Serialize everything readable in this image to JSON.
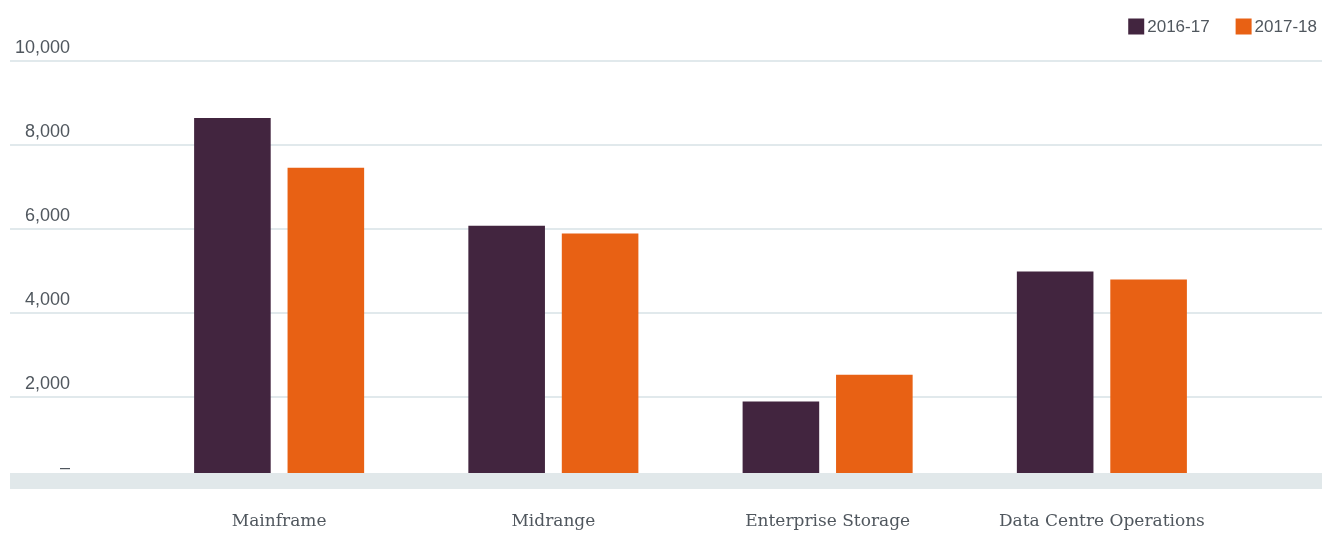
{
  "chart_data": {
    "type": "bar",
    "categories": [
      "Mainframe",
      "Midrange",
      "Enterprise Storage",
      "Data Centre Operations"
    ],
    "series": [
      {
        "name": "2016-17",
        "color": "#42253f",
        "values": [
          8640,
          6080,
          1890,
          4990
        ]
      },
      {
        "name": "2017-18",
        "color": "#e86114",
        "values": [
          7460,
          5890,
          2530,
          4800
        ]
      }
    ],
    "ylim": [
      0,
      10000
    ],
    "yticks": [
      {
        "value": 0,
        "label": "–"
      },
      {
        "value": 2000,
        "label": "2,000"
      },
      {
        "value": 4000,
        "label": "4,000"
      },
      {
        "value": 6000,
        "label": "6,000"
      },
      {
        "value": 8000,
        "label": "8,000"
      },
      {
        "value": 10000,
        "label": "10,000"
      }
    ],
    "grid": "y",
    "legend": "top right"
  }
}
